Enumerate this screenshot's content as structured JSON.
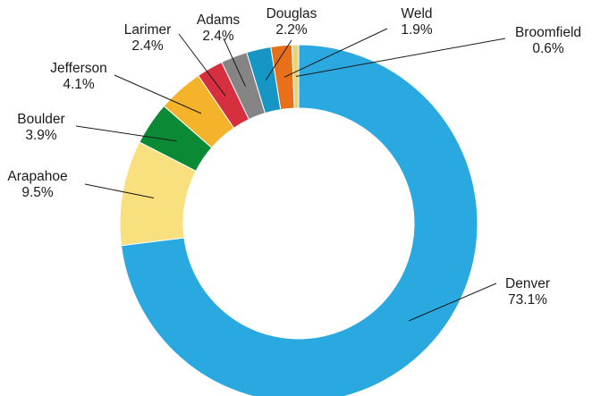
{
  "chart_data": {
    "type": "pie",
    "style": "donut",
    "slices": [
      {
        "name": "Denver",
        "value": 73.1,
        "label": "73.1%",
        "color": "#29a9e0"
      },
      {
        "name": "Arapahoe",
        "value": 9.5,
        "label": "9.5%",
        "color": "#f8e07f"
      },
      {
        "name": "Boulder",
        "value": 3.9,
        "label": "3.9%",
        "color": "#0b8a36"
      },
      {
        "name": "Jefferson",
        "value": 4.1,
        "label": "4.1%",
        "color": "#f4b32a"
      },
      {
        "name": "Larimer",
        "value": 2.4,
        "label": "2.4%",
        "color": "#d62f3f"
      },
      {
        "name": "Adams",
        "value": 2.4,
        "label": "2.4%",
        "color": "#858585"
      },
      {
        "name": "Douglas",
        "value": 2.2,
        "label": "2.2%",
        "color": "#1596c4"
      },
      {
        "name": "Weld",
        "value": 1.9,
        "label": "1.9%",
        "color": "#e8701a"
      },
      {
        "name": "Broomfield",
        "value": 0.6,
        "label": "0.6%",
        "color": "#e6d37b"
      }
    ],
    "start_angle": "12 o'clock",
    "direction": "clockwise",
    "legend": "none (callout labels with leader lines)",
    "title": ""
  }
}
